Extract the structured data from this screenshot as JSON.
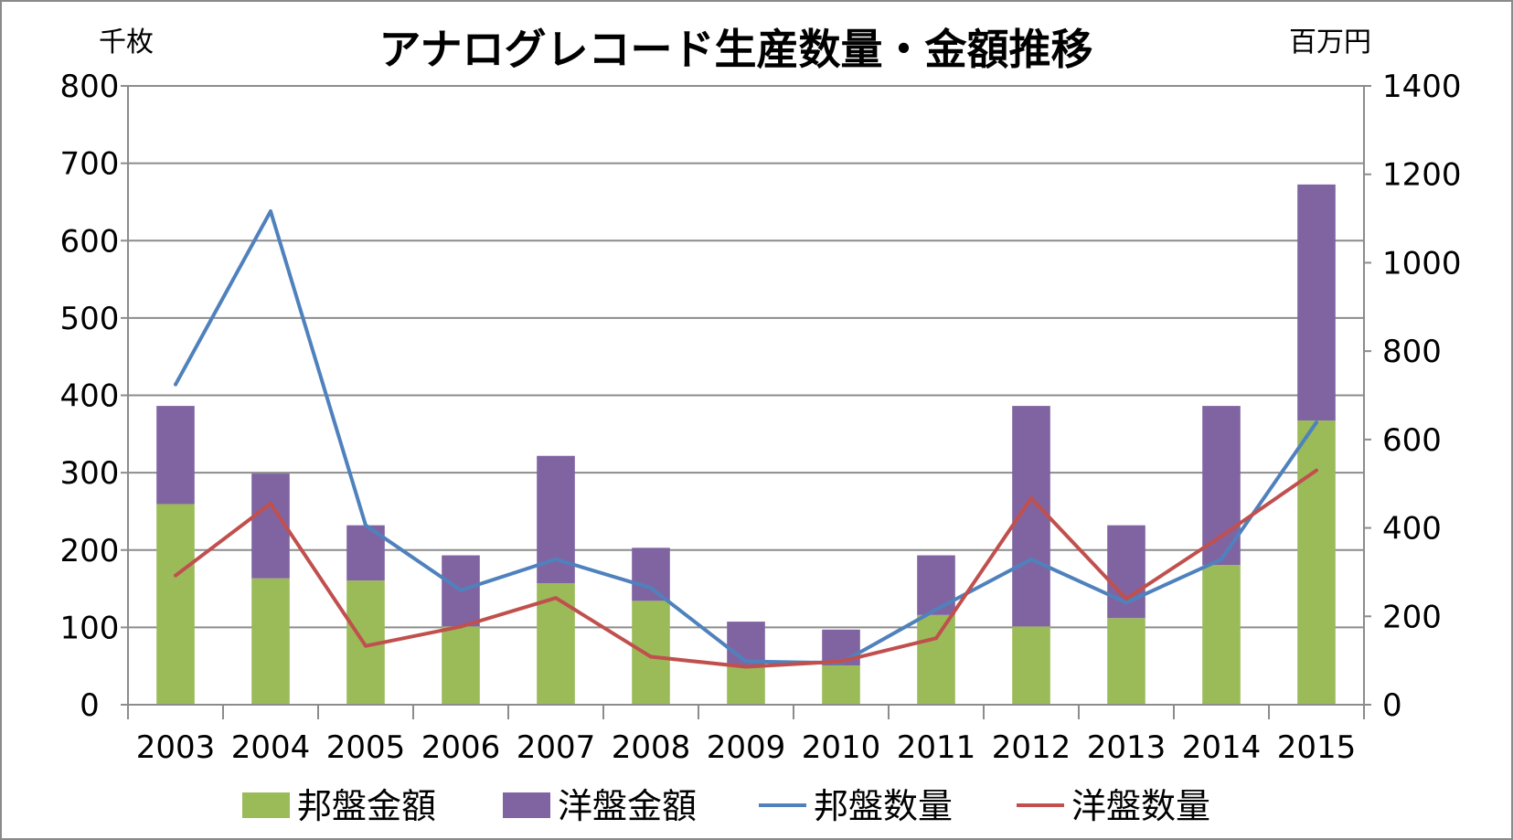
{
  "chart_data": {
    "type": "bar",
    "title": "アナログレコード生産数量・金額推移",
    "ylabel_left": "千枚",
    "ylabel_right": "百万円",
    "ylim_left": [
      0,
      800
    ],
    "ylim_right": [
      0,
      1400
    ],
    "yticks_left": [
      0,
      100,
      200,
      300,
      400,
      500,
      600,
      700,
      800
    ],
    "yticks_right": [
      0,
      200,
      400,
      600,
      800,
      1000,
      1200,
      1400
    ],
    "grid": true,
    "legend_position": "bottom",
    "categories": [
      "2003",
      "2004",
      "2005",
      "2006",
      "2007",
      "2008",
      "2009",
      "2010",
      "2011",
      "2012",
      "2013",
      "2014",
      "2015"
    ],
    "series": [
      {
        "name": "邦盤金額",
        "kind": "stacked-bar",
        "axis": "right",
        "color": "#9bbb59",
        "values": [
          454,
          286,
          281,
          177,
          275,
          235,
          90,
          89,
          203,
          177,
          196,
          316,
          643
        ]
      },
      {
        "name": "洋盤金額",
        "kind": "stacked-bar",
        "axis": "right",
        "color": "#8064a2",
        "values": [
          222,
          237,
          125,
          161,
          288,
          120,
          98,
          81,
          135,
          499,
          210,
          360,
          534
        ]
      },
      {
        "name": "邦盤数量",
        "kind": "line",
        "axis": "left",
        "color": "#4f81bd",
        "values": [
          414,
          638,
          232,
          148,
          188,
          151,
          56,
          54,
          123,
          188,
          132,
          188,
          365
        ]
      },
      {
        "name": "洋盤数量",
        "kind": "line",
        "axis": "left",
        "color": "#c0504d",
        "values": [
          167,
          260,
          76,
          101,
          138,
          62,
          49,
          56,
          86,
          267,
          137,
          218,
          303
        ]
      }
    ]
  }
}
